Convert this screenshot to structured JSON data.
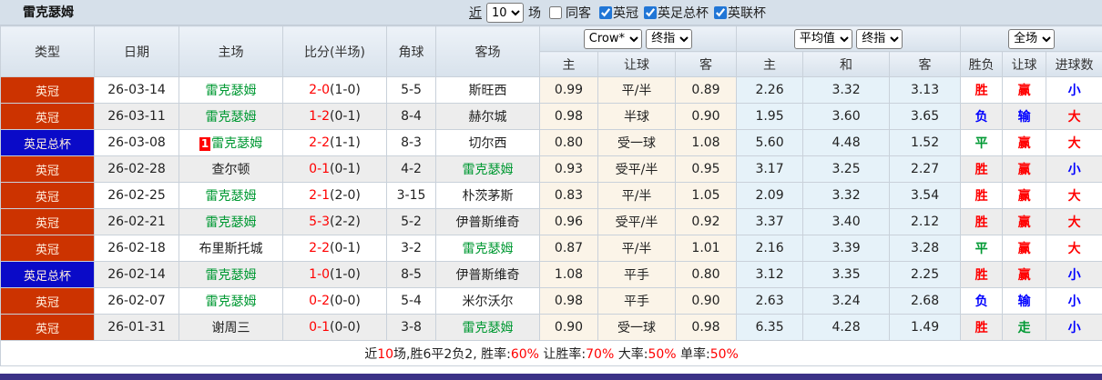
{
  "title": "雷克瑟姆",
  "toolbar": {
    "near_link": "近",
    "match_count": "10",
    "matches_suffix": "场",
    "same_venue_label": "同客",
    "same_venue_checked": false,
    "filters": [
      {
        "label": "英冠",
        "checked": true
      },
      {
        "label": "英足总杯",
        "checked": true
      },
      {
        "label": "英联杯",
        "checked": true
      }
    ]
  },
  "selectors": {
    "bookmaker": "Crow*",
    "bookmaker_stage": "终指",
    "average": "平均值",
    "average_stage": "终指",
    "scope": "全场"
  },
  "table": {
    "columns": [
      "类型",
      "日期",
      "主场",
      "比分(半场)",
      "角球",
      "客场",
      "主",
      "让球",
      "客",
      "主",
      "和",
      "客",
      "胜负",
      "让球",
      "进球数"
    ],
    "rows": [
      {
        "type": "英冠",
        "type_color": "red",
        "date": "26-03-14",
        "home": "雷克瑟姆",
        "home_team": true,
        "home_badge": "",
        "score": "2-0",
        "half": "(1-0)",
        "corners": "5-5",
        "away": "斯旺西",
        "away_team": false,
        "odds_home": "0.99",
        "handicap": "平/半",
        "odds_away": "0.89",
        "avg_home": "2.26",
        "avg_draw": "3.32",
        "avg_away": "3.13",
        "outcome": "胜",
        "outcome_color": "red",
        "handicap_result": "赢",
        "handicap_result_color": "red",
        "goals_result": "小",
        "goals_result_color": "blue"
      },
      {
        "type": "英冠",
        "type_color": "red",
        "date": "26-03-11",
        "home": "雷克瑟姆",
        "home_team": true,
        "home_badge": "",
        "score": "1-2",
        "half": "(0-1)",
        "corners": "8-4",
        "away": "赫尔城",
        "away_team": false,
        "odds_home": "0.98",
        "handicap": "半球",
        "odds_away": "0.90",
        "avg_home": "1.95",
        "avg_draw": "3.60",
        "avg_away": "3.65",
        "outcome": "负",
        "outcome_color": "blue",
        "handicap_result": "输",
        "handicap_result_color": "blue",
        "goals_result": "大",
        "goals_result_color": "red"
      },
      {
        "type": "英足总杯",
        "type_color": "blue",
        "date": "26-03-08",
        "home": "雷克瑟姆",
        "home_team": true,
        "home_badge": "1",
        "score": "2-2",
        "half": "(1-1)",
        "corners": "8-3",
        "away": "切尔西",
        "away_team": false,
        "odds_home": "0.80",
        "handicap": "受一球",
        "odds_away": "1.08",
        "avg_home": "5.60",
        "avg_draw": "4.48",
        "avg_away": "1.52",
        "outcome": "平",
        "outcome_color": "green",
        "handicap_result": "赢",
        "handicap_result_color": "red",
        "goals_result": "大",
        "goals_result_color": "red"
      },
      {
        "type": "英冠",
        "type_color": "red",
        "date": "26-02-28",
        "home": "查尔顿",
        "home_team": false,
        "home_badge": "",
        "score": "0-1",
        "half": "(0-1)",
        "corners": "4-2",
        "away": "雷克瑟姆",
        "away_team": true,
        "odds_home": "0.93",
        "handicap": "受平/半",
        "odds_away": "0.95",
        "avg_home": "3.17",
        "avg_draw": "3.25",
        "avg_away": "2.27",
        "outcome": "胜",
        "outcome_color": "red",
        "handicap_result": "赢",
        "handicap_result_color": "red",
        "goals_result": "小",
        "goals_result_color": "blue"
      },
      {
        "type": "英冠",
        "type_color": "red",
        "date": "26-02-25",
        "home": "雷克瑟姆",
        "home_team": true,
        "home_badge": "",
        "score": "2-1",
        "half": "(2-0)",
        "corners": "3-15",
        "away": "朴茨茅斯",
        "away_team": false,
        "odds_home": "0.83",
        "handicap": "平/半",
        "odds_away": "1.05",
        "avg_home": "2.09",
        "avg_draw": "3.32",
        "avg_away": "3.54",
        "outcome": "胜",
        "outcome_color": "red",
        "handicap_result": "赢",
        "handicap_result_color": "red",
        "goals_result": "大",
        "goals_result_color": "red"
      },
      {
        "type": "英冠",
        "type_color": "red",
        "date": "26-02-21",
        "home": "雷克瑟姆",
        "home_team": true,
        "home_badge": "",
        "score": "5-3",
        "half": "(2-2)",
        "corners": "5-2",
        "away": "伊普斯维奇",
        "away_team": false,
        "odds_home": "0.96",
        "handicap": "受平/半",
        "odds_away": "0.92",
        "avg_home": "3.37",
        "avg_draw": "3.40",
        "avg_away": "2.12",
        "outcome": "胜",
        "outcome_color": "red",
        "handicap_result": "赢",
        "handicap_result_color": "red",
        "goals_result": "大",
        "goals_result_color": "red"
      },
      {
        "type": "英冠",
        "type_color": "red",
        "date": "26-02-18",
        "home": "布里斯托城",
        "home_team": false,
        "home_badge": "",
        "score": "2-2",
        "half": "(0-1)",
        "corners": "3-2",
        "away": "雷克瑟姆",
        "away_team": true,
        "odds_home": "0.87",
        "handicap": "平/半",
        "odds_away": "1.01",
        "avg_home": "2.16",
        "avg_draw": "3.39",
        "avg_away": "3.28",
        "outcome": "平",
        "outcome_color": "green",
        "handicap_result": "赢",
        "handicap_result_color": "red",
        "goals_result": "大",
        "goals_result_color": "red"
      },
      {
        "type": "英足总杯",
        "type_color": "blue",
        "date": "26-02-14",
        "home": "雷克瑟姆",
        "home_team": true,
        "home_badge": "",
        "score": "1-0",
        "half": "(1-0)",
        "corners": "8-5",
        "away": "伊普斯维奇",
        "away_team": false,
        "odds_home": "1.08",
        "handicap": "平手",
        "odds_away": "0.80",
        "avg_home": "3.12",
        "avg_draw": "3.35",
        "avg_away": "2.25",
        "outcome": "胜",
        "outcome_color": "red",
        "handicap_result": "赢",
        "handicap_result_color": "red",
        "goals_result": "小",
        "goals_result_color": "blue"
      },
      {
        "type": "英冠",
        "type_color": "red",
        "date": "26-02-07",
        "home": "雷克瑟姆",
        "home_team": true,
        "home_badge": "",
        "score": "0-2",
        "half": "(0-0)",
        "corners": "5-4",
        "away": "米尔沃尔",
        "away_team": false,
        "odds_home": "0.98",
        "handicap": "平手",
        "odds_away": "0.90",
        "avg_home": "2.63",
        "avg_draw": "3.24",
        "avg_away": "2.68",
        "outcome": "负",
        "outcome_color": "blue",
        "handicap_result": "输",
        "handicap_result_color": "blue",
        "goals_result": "小",
        "goals_result_color": "blue"
      },
      {
        "type": "英冠",
        "type_color": "red",
        "date": "26-01-31",
        "home": "谢周三",
        "home_team": false,
        "home_badge": "",
        "score": "0-1",
        "half": "(0-0)",
        "corners": "3-8",
        "away": "雷克瑟姆",
        "away_team": true,
        "odds_home": "0.90",
        "handicap": "受一球",
        "odds_away": "0.98",
        "avg_home": "6.35",
        "avg_draw": "4.28",
        "avg_away": "1.49",
        "outcome": "胜",
        "outcome_color": "red",
        "handicap_result": "走",
        "handicap_result_color": "green",
        "goals_result": "小",
        "goals_result_color": "blue"
      }
    ]
  },
  "footer": {
    "segments": [
      {
        "text": "近",
        "color": "black"
      },
      {
        "text": "10",
        "color": "red"
      },
      {
        "text": "场,胜6平2负2, 胜率:",
        "color": "black"
      },
      {
        "text": "60%",
        "color": "red"
      },
      {
        "text": " 让胜率:",
        "color": "black"
      },
      {
        "text": "70%",
        "color": "red"
      },
      {
        "text": " 大率:",
        "color": "black"
      },
      {
        "text": "50%",
        "color": "red"
      },
      {
        "text": " 单率:",
        "color": "black"
      },
      {
        "text": "50%",
        "color": "red"
      }
    ]
  }
}
